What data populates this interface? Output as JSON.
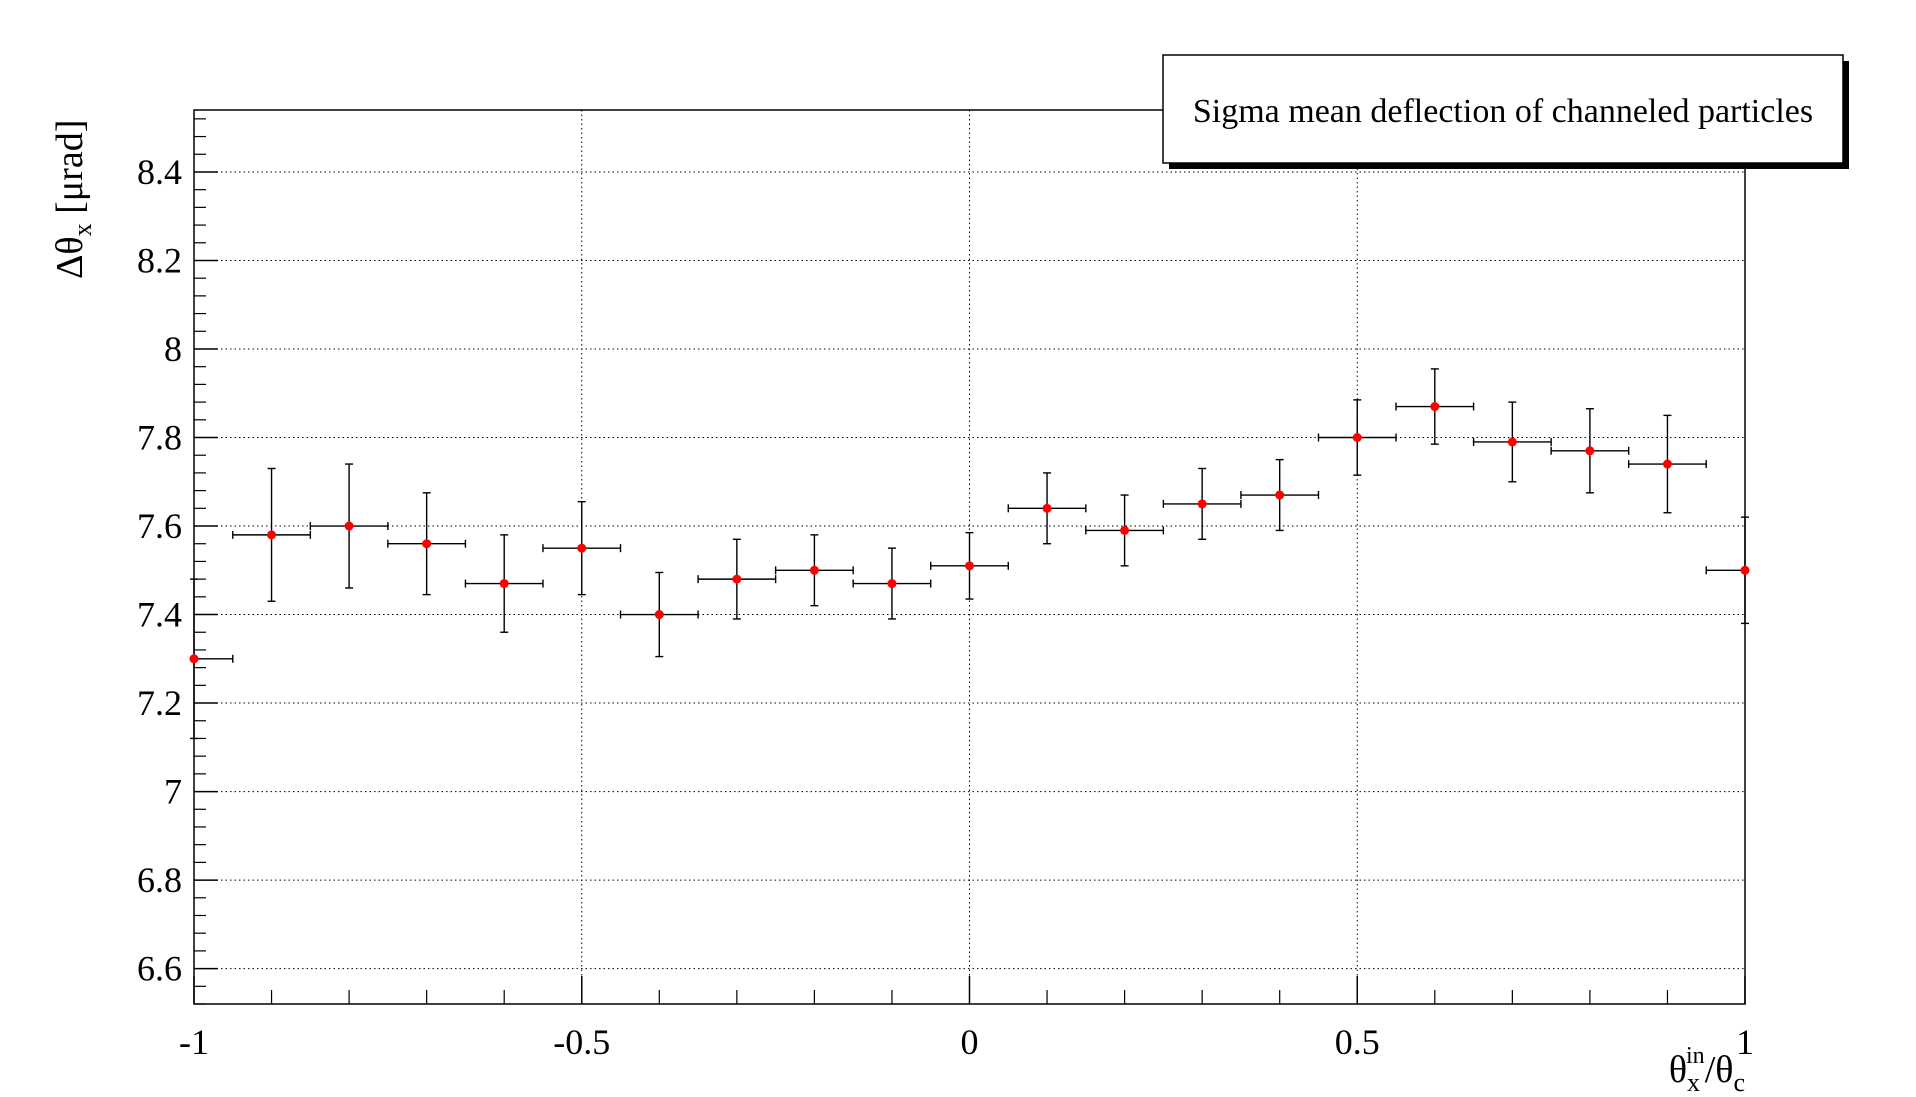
{
  "chart_data": {
    "type": "scatter",
    "title": "",
    "legend": {
      "text": "Sigma mean deflection of channeled particles",
      "position": "top-right"
    },
    "xlabel": {
      "base": "θ",
      "sub": "x",
      "sup": "in",
      "rest_base": "/θ",
      "rest_sub": "c"
    },
    "ylabel": {
      "base": "Δθ",
      "sub": "x",
      "rest": " [μrad]"
    },
    "xlim": [
      -1,
      1
    ],
    "ylim": [
      6.52,
      8.54
    ],
    "grid": true,
    "x_ticks": [
      -1,
      -0.5,
      0,
      0.5,
      1
    ],
    "x_tick_labels": [
      "-1",
      "-0.5",
      "0",
      "0.5",
      "1"
    ],
    "y_ticks": [
      6.6,
      6.8,
      7,
      7.2,
      7.4,
      7.6,
      7.8,
      8,
      8.2,
      8.4
    ],
    "y_tick_labels": [
      "6.6",
      "6.8",
      "7",
      "7.2",
      "7.4",
      "7.6",
      "7.8",
      "8",
      "8.2",
      "8.4"
    ],
    "marker_color": "#ff0000",
    "x_error": 0.05,
    "points": [
      {
        "x": -1.0,
        "y": 7.3,
        "yerr": 0.18
      },
      {
        "x": -0.9,
        "y": 7.58,
        "yerr": 0.15
      },
      {
        "x": -0.8,
        "y": 7.6,
        "yerr": 0.14
      },
      {
        "x": -0.7,
        "y": 7.56,
        "yerr": 0.115
      },
      {
        "x": -0.6,
        "y": 7.47,
        "yerr": 0.11
      },
      {
        "x": -0.5,
        "y": 7.55,
        "yerr": 0.105
      },
      {
        "x": -0.4,
        "y": 7.4,
        "yerr": 0.095
      },
      {
        "x": -0.3,
        "y": 7.48,
        "yerr": 0.09
      },
      {
        "x": -0.2,
        "y": 7.5,
        "yerr": 0.08
      },
      {
        "x": -0.1,
        "y": 7.47,
        "yerr": 0.08
      },
      {
        "x": 0.0,
        "y": 7.51,
        "yerr": 0.075
      },
      {
        "x": 0.1,
        "y": 7.64,
        "yerr": 0.08
      },
      {
        "x": 0.2,
        "y": 7.59,
        "yerr": 0.08
      },
      {
        "x": 0.3,
        "y": 7.65,
        "yerr": 0.08
      },
      {
        "x": 0.4,
        "y": 7.67,
        "yerr": 0.08
      },
      {
        "x": 0.5,
        "y": 7.8,
        "yerr": 0.085
      },
      {
        "x": 0.6,
        "y": 7.87,
        "yerr": 0.085
      },
      {
        "x": 0.7,
        "y": 7.79,
        "yerr": 0.09
      },
      {
        "x": 0.8,
        "y": 7.77,
        "yerr": 0.095
      },
      {
        "x": 0.9,
        "y": 7.74,
        "yerr": 0.11
      },
      {
        "x": 1.0,
        "y": 7.5,
        "yerr": 0.12
      }
    ]
  }
}
